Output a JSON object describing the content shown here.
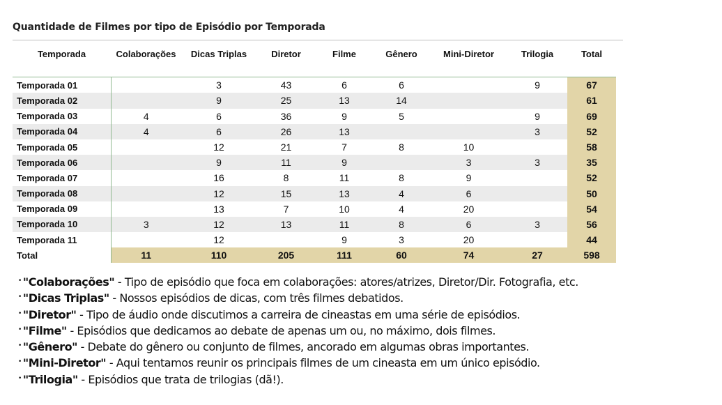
{
  "title": "Quantidade de Filmes por tipo de Episódio por Temporada",
  "chart_data": {
    "type": "table",
    "title": "Quantidade de Filmes por tipo de Episódio por Temporada",
    "columns": [
      "Temporada",
      "Colaborações",
      "Dicas Triplas",
      "Diretor",
      "Filme",
      "Gênero",
      "Mini-Diretor",
      "Trilogia",
      "Total"
    ],
    "rows": [
      [
        "Temporada 01",
        "",
        "3",
        "43",
        "6",
        "6",
        "",
        "9",
        "67"
      ],
      [
        "Temporada 02",
        "",
        "9",
        "25",
        "13",
        "14",
        "",
        "",
        "61"
      ],
      [
        "Temporada 03",
        "4",
        "6",
        "36",
        "9",
        "5",
        "",
        "9",
        "69"
      ],
      [
        "Temporada 04",
        "4",
        "6",
        "26",
        "13",
        "",
        "",
        "3",
        "52"
      ],
      [
        "Temporada 05",
        "",
        "12",
        "21",
        "7",
        "8",
        "10",
        "",
        "58"
      ],
      [
        "Temporada 06",
        "",
        "9",
        "11",
        "9",
        "",
        "3",
        "3",
        "35"
      ],
      [
        "Temporada 07",
        "",
        "16",
        "8",
        "11",
        "8",
        "9",
        "",
        "52"
      ],
      [
        "Temporada 08",
        "",
        "12",
        "15",
        "13",
        "4",
        "6",
        "",
        "50"
      ],
      [
        "Temporada 09",
        "",
        "13",
        "7",
        "10",
        "4",
        "20",
        "",
        "54"
      ],
      [
        "Temporada 10",
        "3",
        "12",
        "13",
        "11",
        "8",
        "6",
        "3",
        "56"
      ],
      [
        "Temporada 11",
        "",
        "12",
        "",
        "9",
        "3",
        "20",
        "",
        "44"
      ]
    ],
    "totals": [
      "Total",
      "11",
      "110",
      "205",
      "111",
      "60",
      "74",
      "27",
      "598"
    ]
  },
  "notes": [
    {
      "term": "\"Colaborações\"",
      "text": " - Tipo de episódio que foca em colaborações: atores/atrizes, Diretor/Dir. Fotografia, etc."
    },
    {
      "term": "\"Dicas Triplas\"",
      "text": " - Nossos episódios de dicas, com três filmes debatidos."
    },
    {
      "term": "\"Diretor\"",
      "text": " - Tipo de áudio onde discutimos a carreira de cineastas em uma série de episódios."
    },
    {
      "term": "\"Filme\"",
      "text": " - Episódios que dedicamos ao debate de apenas um ou, no máximo, dois filmes."
    },
    {
      "term": "\"Gênero\"",
      "text": " - Debate do gênero ou conjunto de filmes, ancorado em algumas obras importantes."
    },
    {
      "term": "\"Mini-Diretor\"",
      "text": " - Aqui tentamos reunir os principais filmes de um cineasta em um único episódio."
    },
    {
      "term": "\"Trilogia\"",
      "text": " - Episódios que trata de trilogias (dã!)."
    }
  ]
}
